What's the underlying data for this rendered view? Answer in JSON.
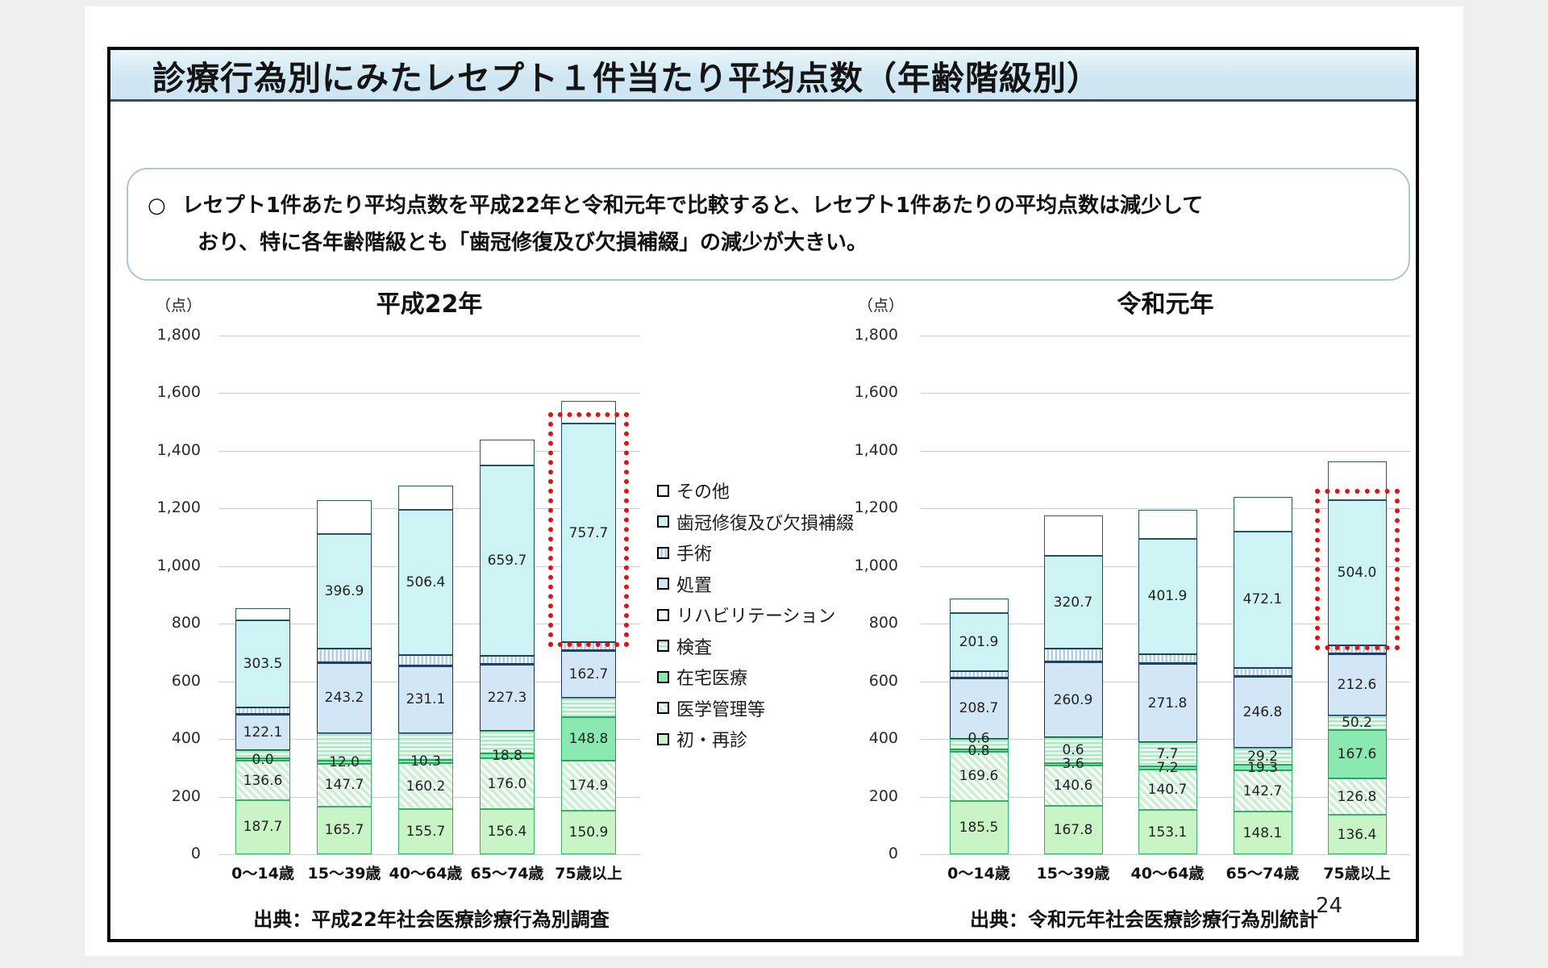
{
  "slide": {
    "title": "診療行為別にみたレセプト１件当たり平均点数（年齢階級別）",
    "bullet": {
      "marker": "○",
      "line1": "レセプト1件あたり平均点数を平成22年と令和元年で比較すると、レセプト1件あたりの平均点数は減少して",
      "line2": "おり、特に各年齢階級とも「歯冠修復及び欠損補綴」の減少が大きい。"
    },
    "page_number": "24",
    "colors": {
      "title_bar_bg": "#d2e8f3",
      "highlight_red": "#dc1414",
      "frame_border": "#0a0a0a"
    }
  },
  "axis": {
    "ylim": [
      0,
      1800
    ],
    "tick_step": 200,
    "tick_labels": [
      "0",
      "200",
      "400",
      "600",
      "800",
      "1,000",
      "1,200",
      "1,400",
      "1,600",
      "1,800"
    ],
    "grid": true
  },
  "legend": {
    "position": "center-between-charts",
    "items": [
      {
        "label": "その他",
        "style": "other",
        "fill": "#ffffff",
        "pattern": "solid"
      },
      {
        "label": "歯冠修復及び欠損補綴",
        "style": "crown",
        "fill": "#cdf3f5",
        "pattern": "solid"
      },
      {
        "label": "手術",
        "style": "surg",
        "fill": "#aecfe9",
        "pattern": "vertical-stripes"
      },
      {
        "label": "処置",
        "style": "treat",
        "fill": "#d3e6f6",
        "pattern": "solid"
      },
      {
        "label": "リハビリテーション",
        "style": "rehab",
        "fill": "#f4fafd",
        "pattern": "solid"
      },
      {
        "label": "検査",
        "style": "exam",
        "fill": "#aee8c4",
        "pattern": "horizontal-stripes"
      },
      {
        "label": "在宅医療",
        "style": "home",
        "fill": "#8ae9b0",
        "pattern": "solid"
      },
      {
        "label": "医学管理等",
        "style": "mgmt",
        "fill": "#cdf0d5",
        "pattern": "diagonal-hatch"
      },
      {
        "label": "初・再診",
        "style": "first",
        "fill": "#c9f4c5",
        "pattern": "solid"
      }
    ]
  },
  "notes": "type: stacked bar, unit = points per receipt. 'labels' are the values printed on the chart (null where not printed). 'drawn' is the plotted segment extent in points estimated from the gridlines, used only to reproduce unlabeled segment sizes.",
  "chart_data": [
    {
      "type": "bar",
      "subtype": "stacked",
      "title": "平成22年",
      "unit": "（点）",
      "source": "出典：平成22年社会医療診療行為別調査",
      "categories": [
        "0〜14歳",
        "15〜39歳",
        "40〜64歳",
        "65〜74歳",
        "75歳以上"
      ],
      "series": [
        {
          "name": "初・再診",
          "style": "first",
          "values": [
            187.7,
            165.7,
            155.7,
            156.4,
            150.9
          ],
          "labels": [
            "187.7",
            "165.7",
            "155.7",
            "156.4",
            "150.9"
          ],
          "drawn": [
            187.7,
            165.7,
            155.7,
            156.4,
            150.9
          ]
        },
        {
          "name": "医学管理等",
          "style": "mgmt",
          "values": [
            136.6,
            147.7,
            160.2,
            176.0,
            174.9
          ],
          "labels": [
            "136.6",
            "147.7",
            "160.2",
            "176.0",
            "174.9"
          ],
          "drawn": [
            136.6,
            147.7,
            160.2,
            176.0,
            174.9
          ]
        },
        {
          "name": "在宅医療",
          "style": "home",
          "values": [
            0.0,
            12.0,
            10.3,
            18.8,
            148.8
          ],
          "labels": [
            "0.0",
            "12.0",
            "10.3",
            "18.8",
            "148.8"
          ],
          "drawn": [
            8,
            12,
            10.3,
            18.8,
            148.8
          ]
        },
        {
          "name": "検査",
          "style": "exam",
          "values": null,
          "labels": null,
          "drawn": [
            30,
            95,
            95,
            78,
            68
          ]
        },
        {
          "name": "処置",
          "style": "treat",
          "values": [
            122.1,
            243.2,
            231.1,
            227.3,
            162.7
          ],
          "labels": [
            "122.1",
            "243.2",
            "231.1",
            "227.3",
            "162.7"
          ],
          "drawn": [
            122.1,
            243.2,
            231.1,
            227.3,
            162.7
          ]
        },
        {
          "name": "リハビリテーション",
          "style": "rehab",
          "values": null,
          "labels": null,
          "drawn": [
            3,
            3,
            3,
            3,
            3
          ]
        },
        {
          "name": "手術",
          "style": "surg",
          "values": null,
          "labels": null,
          "drawn": [
            22,
            48,
            35,
            30,
            28
          ]
        },
        {
          "name": "歯冠修復及び欠損補綴",
          "style": "crown",
          "values": [
            303.5,
            396.9,
            506.4,
            659.7,
            757.7
          ],
          "labels": [
            "303.5",
            "396.9",
            "506.4",
            "659.7",
            "757.7"
          ],
          "drawn": [
            303.5,
            396.9,
            506.4,
            659.7,
            757.7
          ]
        },
        {
          "name": "その他",
          "style": "other",
          "values": null,
          "labels": null,
          "drawn": [
            40,
            118,
            84,
            90,
            78
          ]
        }
      ],
      "highlight": {
        "series": "歯冠修復及び欠損補綴",
        "category": "75歳以上"
      }
    },
    {
      "type": "bar",
      "subtype": "stacked",
      "title": "令和元年",
      "unit": "（点）",
      "source": "出典：令和元年社会医療診療行為別統計",
      "categories": [
        "0〜14歳",
        "15〜39歳",
        "40〜64歳",
        "65〜74歳",
        "75歳以上"
      ],
      "series": [
        {
          "name": "初・再診",
          "style": "first",
          "values": [
            185.5,
            167.8,
            153.1,
            148.1,
            136.4
          ],
          "labels": [
            "185.5",
            "167.8",
            "153.1",
            "148.1",
            "136.4"
          ],
          "drawn": [
            185.5,
            167.8,
            153.1,
            148.1,
            136.4
          ]
        },
        {
          "name": "医学管理等",
          "style": "mgmt",
          "values": [
            169.6,
            140.6,
            140.7,
            142.7,
            126.8
          ],
          "labels": [
            "169.6",
            "140.6",
            "140.7",
            "142.7",
            "126.8"
          ],
          "drawn": [
            169.6,
            140.6,
            140.7,
            142.7,
            126.8
          ]
        },
        {
          "name": "在宅医療",
          "style": "home",
          "values": [
            0.8,
            3.6,
            7.2,
            19.3,
            167.6
          ],
          "labels": [
            "0.8",
            "3.6",
            "7.2",
            "19.3",
            "167.6"
          ],
          "drawn": [
            8,
            9,
            10,
            19.3,
            167.6
          ]
        },
        {
          "name": "検査",
          "style": "exam",
          "values": [
            0.6,
            0.6,
            7.7,
            29.2,
            50.2
          ],
          "labels": [
            "0.6",
            "0.6",
            "7.7",
            "29.2",
            "50.2"
          ],
          "drawn": [
            38,
            88,
            85,
            60,
            50.2
          ]
        },
        {
          "name": "処置",
          "style": "treat",
          "values": [
            208.7,
            260.9,
            271.8,
            246.8,
            212.6
          ],
          "labels": [
            "208.7",
            "260.9",
            "271.8",
            "246.8",
            "212.6"
          ],
          "drawn": [
            208.7,
            260.9,
            271.8,
            246.8,
            212.6
          ]
        },
        {
          "name": "リハビリテーション",
          "style": "rehab",
          "values": null,
          "labels": null,
          "drawn": [
            3,
            3,
            3,
            3,
            3
          ]
        },
        {
          "name": "手術",
          "style": "surg",
          "values": null,
          "labels": null,
          "drawn": [
            22,
            45,
            30,
            28,
            28
          ]
        },
        {
          "name": "歯冠修復及び欠損補綴",
          "style": "crown",
          "values": [
            201.9,
            320.7,
            401.9,
            472.1,
            504.0
          ],
          "labels": [
            "201.9",
            "320.7",
            "401.9",
            "472.1",
            "504.0"
          ],
          "drawn": [
            201.9,
            320.7,
            401.9,
            472.1,
            504.0
          ]
        },
        {
          "name": "その他",
          "style": "other",
          "values": null,
          "labels": null,
          "drawn": [
            52,
            140,
            100,
            120,
            135
          ]
        }
      ],
      "highlight": {
        "series": "歯冠修復及び欠損補綴",
        "category": "75歳以上"
      }
    }
  ]
}
